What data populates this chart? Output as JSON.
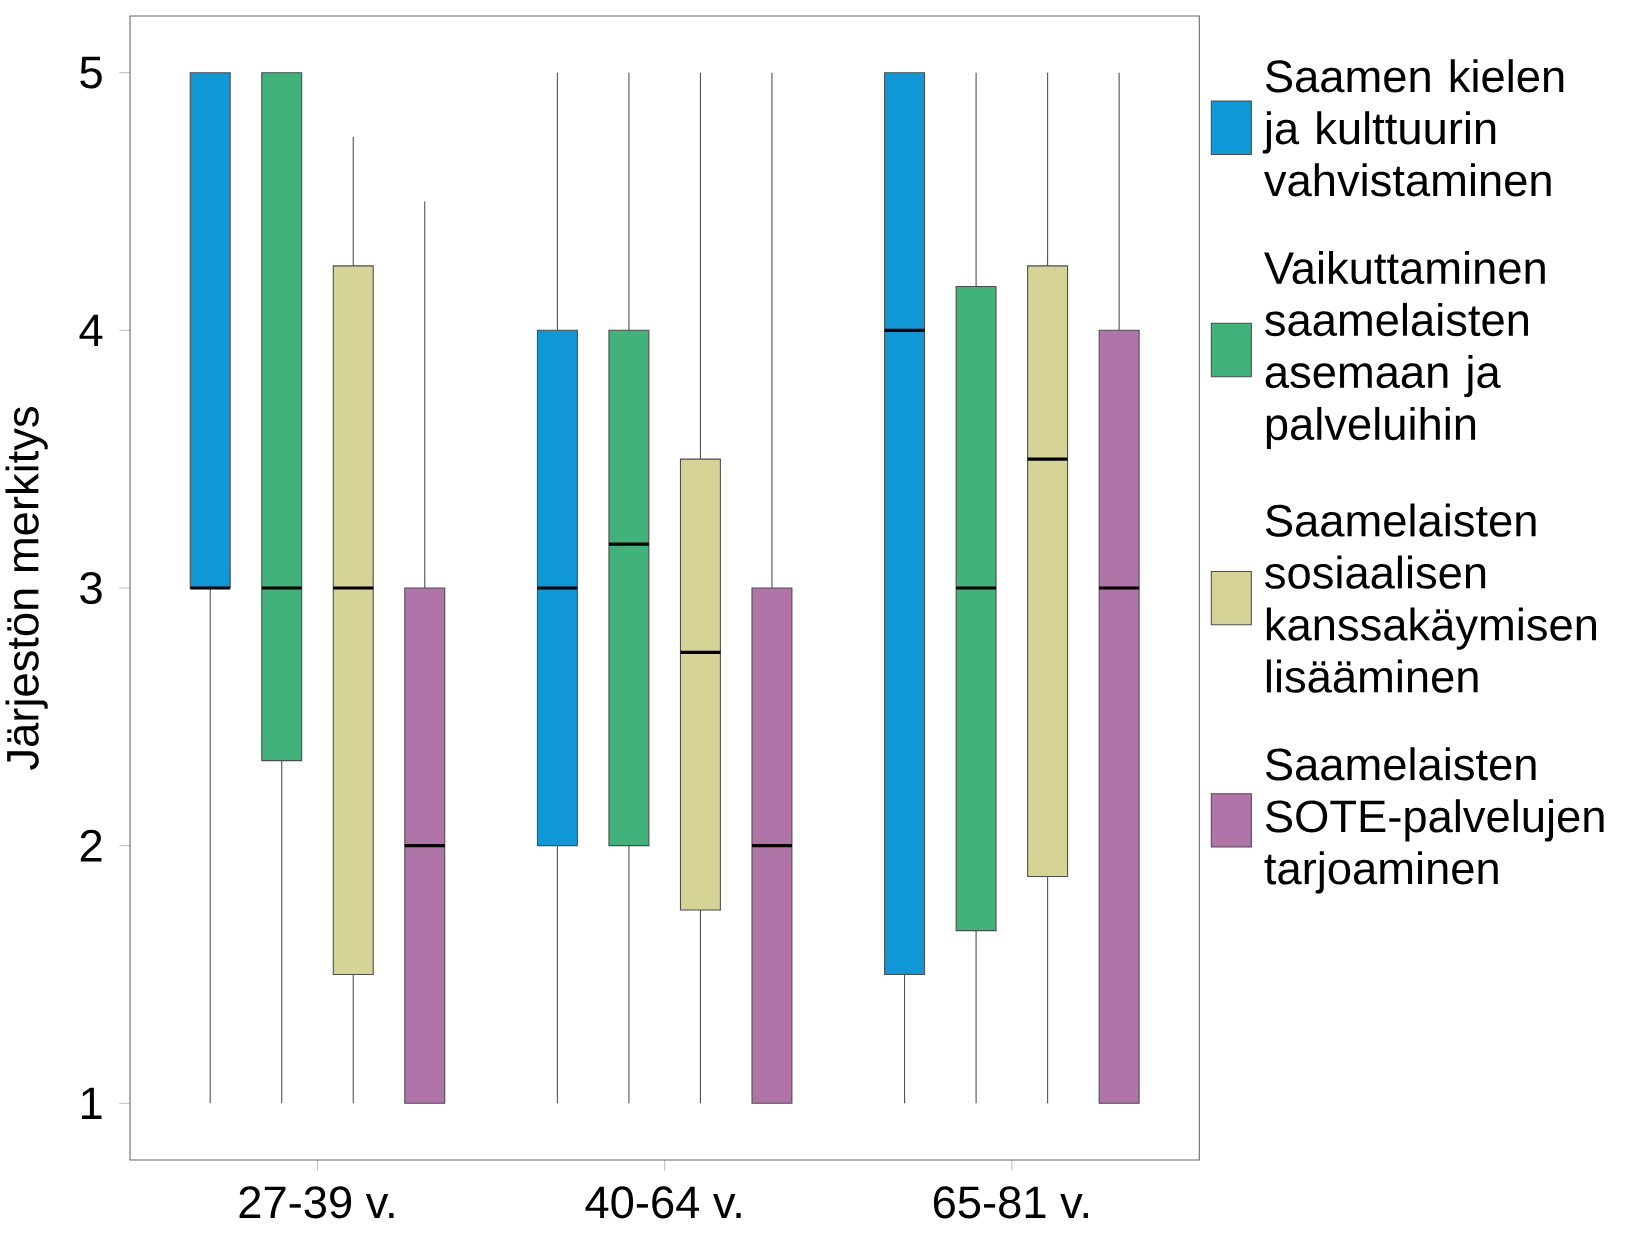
{
  "chart_data": {
    "type": "box",
    "ylabel": "Järjestön merkitys",
    "categories": [
      "27-39 v.",
      "40-64 v.",
      "65-81 v."
    ],
    "ylim": [
      0.78,
      5.22
    ],
    "yticks": [
      1,
      2,
      3,
      4,
      5
    ],
    "legend": "right",
    "series": [
      {
        "name": "Saamen kielen ja kulttuurin vahvistaminen",
        "color": "#0f97d6",
        "boxes": [
          {
            "low": 1,
            "q1": 3,
            "median": 3,
            "q3": 5,
            "high": 5
          },
          {
            "low": 1,
            "q1": 2,
            "median": 3,
            "q3": 4,
            "high": 5
          },
          {
            "low": 1,
            "q1": 1.5,
            "median": 4,
            "q3": 5,
            "high": 5
          }
        ]
      },
      {
        "name": "Vaikuttaminen saamelaisten asemaan ja palveluihin",
        "color": "#41b27a",
        "boxes": [
          {
            "low": 1,
            "q1": 2.33,
            "median": 3,
            "q3": 5,
            "high": 5
          },
          {
            "low": 1,
            "q1": 2,
            "median": 3.17,
            "q3": 4,
            "high": 5
          },
          {
            "low": 1,
            "q1": 1.67,
            "median": 3,
            "q3": 4.17,
            "high": 5
          }
        ]
      },
      {
        "name": "Saamelaisten sosiaalisen kanssakäymisen lisääminen",
        "color": "#d6d397",
        "boxes": [
          {
            "low": 1,
            "q1": 1.5,
            "median": 3,
            "q3": 4.25,
            "high": 4.75
          },
          {
            "low": 1,
            "q1": 1.75,
            "median": 2.75,
            "q3": 3.5,
            "high": 5
          },
          {
            "low": 1,
            "q1": 1.88,
            "median": 3.5,
            "q3": 4.25,
            "high": 5
          }
        ]
      },
      {
        "name": "Saamelaisten SOTE-palvelujen tarjoaminen",
        "color": "#b074a9",
        "boxes": [
          {
            "low": 1,
            "q1": 1,
            "median": 2,
            "q3": 3,
            "high": 4.5
          },
          {
            "low": 1,
            "q1": 1,
            "median": 2,
            "q3": 3,
            "high": 5
          },
          {
            "low": 1,
            "q1": 1,
            "median": 3,
            "q3": 4,
            "high": 5
          }
        ]
      }
    ]
  }
}
